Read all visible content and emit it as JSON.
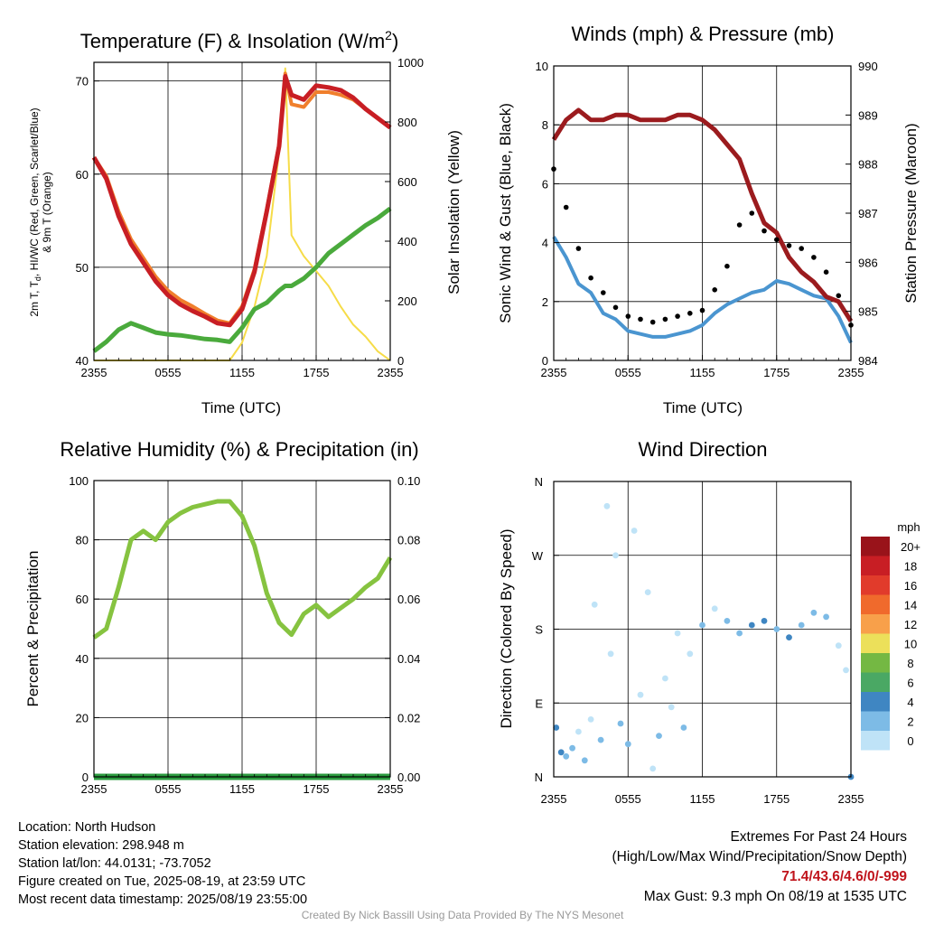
{
  "panels": {
    "temperature": {
      "title": "Temperature (F) & Insolation (W/m2)",
      "title_main": "Temperature (F) & Insolation (W/m",
      "title_sup": "2",
      "title_end": ")",
      "ylabel_left_line1": "2m T, T",
      "ylabel_left_sub": "d",
      "ylabel_left_line1_rest": ", HI/WC (Red, Green, Scarlet/Blue)",
      "ylabel_left_line2": "& 9m T (Orange)",
      "ylabel_right": "Solar Insolation (Yellow)",
      "xlabel": "Time (UTC)"
    },
    "winds": {
      "title": "Winds (mph) & Pressure (mb)",
      "ylabel_left": "Sonic Wind & Gust (Blue, Black)",
      "ylabel_right": "Station Pressure (Maroon)",
      "xlabel": "Time (UTC)"
    },
    "humidity": {
      "title": "Relative Humidity (%) & Precipitation (in)",
      "ylabel_left": "Percent & Precipitation"
    },
    "direction": {
      "title": "Wind Direction",
      "ylabel_left": "Direction (Colored By Speed)",
      "colorbar_title": "mph",
      "colorbar": [
        {
          "label": "20+",
          "color": "#99131a"
        },
        {
          "label": "18",
          "color": "#c81e24"
        },
        {
          "label": "16",
          "color": "#e13b2b"
        },
        {
          "label": "14",
          "color": "#f06a2c"
        },
        {
          "label": "12",
          "color": "#f8a04a"
        },
        {
          "label": "10",
          "color": "#ece05a"
        },
        {
          "label": "8",
          "color": "#74b843"
        },
        {
          "label": "6",
          "color": "#4aa864"
        },
        {
          "label": "4",
          "color": "#3f86c2"
        },
        {
          "label": "2",
          "color": "#7dbbe6"
        },
        {
          "label": "0",
          "color": "#bfe3f7"
        }
      ]
    }
  },
  "info": {
    "location": "Location: North Hudson",
    "elevation": "Station elevation: 298.948 m",
    "latlon": "Station lat/lon: 44.0131; -73.7052",
    "created": "Figure created on Tue, 2025-08-19, at 23:59 UTC",
    "recent": "Most recent data timestamp: 2025/08/19 23:55:00"
  },
  "extremes": {
    "title": "Extremes For Past 24 Hours",
    "subtitle": "(High/Low/Max Wind/Precipitation/Snow Depth)",
    "values": "71.4/43.6/4.6/0/-999",
    "gust": "Max Gust: 9.3 mph On 08/19 at 1535 UTC"
  },
  "credit": "Created By Nick Bassill Using Data Provided By The NYS Mesonet",
  "colors": {
    "temp": "#c81e24",
    "temp9m": "#f07f2c",
    "dewpoint": "#4aaa3c",
    "insolation": "#f6dc48",
    "wind": "#4a95d0",
    "gust": "#000000",
    "pressure": "#9b1b1e",
    "rh": "#86c340",
    "precip": "#2a9a3e"
  },
  "chart_data": [
    {
      "type": "line",
      "title": "Temperature (F) & Insolation (W/m2)",
      "xlabel": "Time (UTC)",
      "xticks": [
        "2355",
        "0555",
        "1155",
        "1755",
        "2355"
      ],
      "x_hours_from_start": [
        0,
        1,
        2,
        3,
        4,
        5,
        6,
        7,
        8,
        9,
        10,
        11,
        12,
        13,
        14,
        15,
        15.5,
        16,
        17,
        18,
        19,
        20,
        21,
        22,
        23,
        24
      ],
      "ylim_left": [
        40,
        72
      ],
      "yticks_left": [
        40,
        50,
        60,
        70
      ],
      "ylim_right": [
        0,
        1000
      ],
      "yticks_right": [
        0,
        200,
        400,
        600,
        800,
        1000
      ],
      "series": [
        {
          "axis": "left",
          "values": [
            61.8,
            59.5,
            55.5,
            52.5,
            50.5,
            48.5,
            47.0,
            46.0,
            45.3,
            44.7,
            44.0,
            43.8,
            45.5,
            49.5,
            56.0,
            63.0,
            70.5,
            68.5,
            68.0,
            69.5,
            69.3,
            69.0,
            68.2,
            67.0,
            66.0,
            65.0
          ]
        },
        {
          "axis": "left",
          "values": [
            61.8,
            59.8,
            56.0,
            53.0,
            51.0,
            49.0,
            47.5,
            46.5,
            45.8,
            45.0,
            44.3,
            44.0,
            45.8,
            49.8,
            56.2,
            63.2,
            70.8,
            67.5,
            67.2,
            68.8,
            68.8,
            68.5,
            68.0,
            67.0,
            66.0,
            65.0
          ]
        },
        {
          "axis": "left",
          "values": [
            41.0,
            42.0,
            43.3,
            44.0,
            43.5,
            43.0,
            42.8,
            42.7,
            42.5,
            42.3,
            42.2,
            42.0,
            43.5,
            45.5,
            46.2,
            47.5,
            48.0,
            48.0,
            48.8,
            50.0,
            51.5,
            52.5,
            53.5,
            54.5,
            55.3,
            56.3
          ]
        },
        {
          "axis": "right",
          "values": [
            0,
            0,
            0,
            0,
            0,
            0,
            0,
            0,
            0,
            0,
            0,
            0,
            60,
            180,
            350,
            700,
            980,
            420,
            350,
            300,
            250,
            180,
            120,
            80,
            30,
            0
          ]
        }
      ]
    },
    {
      "type": "line",
      "title": "Winds (mph) & Pressure (mb)",
      "xlabel": "Time (UTC)",
      "xticks": [
        "2355",
        "0555",
        "1155",
        "1755",
        "2355"
      ],
      "x_hours_from_start": [
        0,
        1,
        2,
        3,
        4,
        5,
        6,
        7,
        8,
        9,
        10,
        11,
        12,
        13,
        14,
        15,
        16,
        17,
        18,
        19,
        20,
        21,
        22,
        23,
        24
      ],
      "ylim_left": [
        0,
        10
      ],
      "yticks_left": [
        0,
        2,
        4,
        6,
        8,
        10
      ],
      "ylim_right": [
        984,
        990
      ],
      "yticks_right": [
        984,
        985,
        986,
        987,
        988,
        989,
        990
      ],
      "series": [
        {
          "axis": "left",
          "values": [
            4.2,
            3.5,
            2.6,
            2.3,
            1.6,
            1.4,
            1.0,
            0.9,
            0.8,
            0.8,
            0.9,
            1.0,
            1.2,
            1.6,
            1.9,
            2.1,
            2.3,
            2.4,
            2.7,
            2.6,
            2.4,
            2.2,
            2.1,
            1.5,
            0.6
          ]
        },
        {
          "axis": "left",
          "values": [
            6.5,
            5.2,
            3.8,
            2.8,
            2.3,
            1.8,
            1.5,
            1.4,
            1.3,
            1.4,
            1.5,
            1.6,
            1.7,
            2.4,
            3.2,
            4.6,
            5.0,
            4.4,
            4.1,
            3.9,
            3.8,
            3.5,
            3.0,
            2.2,
            1.2
          ]
        },
        {
          "axis": "right",
          "values": [
            988.5,
            988.9,
            989.1,
            988.9,
            988.9,
            989.0,
            989.0,
            988.9,
            988.9,
            988.9,
            989.0,
            989.0,
            988.9,
            988.7,
            988.4,
            988.1,
            987.4,
            986.8,
            986.6,
            986.1,
            985.8,
            985.6,
            985.3,
            985.2,
            984.8
          ]
        }
      ]
    },
    {
      "type": "line",
      "title": "Relative Humidity (%) & Precipitation (in)",
      "xticks": [
        "2355",
        "0555",
        "1155",
        "1755",
        "2355"
      ],
      "x_hours_from_start": [
        0,
        1,
        2,
        3,
        4,
        5,
        6,
        7,
        8,
        9,
        10,
        11,
        12,
        13,
        14,
        15,
        16,
        17,
        18,
        19,
        20,
        21,
        22,
        23,
        24
      ],
      "ylim_left": [
        0,
        100
      ],
      "yticks_left": [
        0,
        20,
        40,
        60,
        80,
        100
      ],
      "ylim_right": [
        0.0,
        0.1
      ],
      "yticks_right": [
        "0.00",
        "0.02",
        "0.04",
        "0.06",
        "0.08",
        "0.10"
      ],
      "series": [
        {
          "axis": "left",
          "values": [
            47,
            50,
            64,
            80,
            83,
            80,
            86,
            89,
            91,
            92,
            93,
            93,
            88,
            78,
            62,
            52,
            48,
            55,
            58,
            54,
            57,
            60,
            64,
            67,
            74
          ]
        },
        {
          "axis": "right",
          "values": [
            0,
            0,
            0,
            0,
            0,
            0,
            0,
            0,
            0,
            0,
            0,
            0,
            0,
            0,
            0,
            0,
            0,
            0,
            0,
            0,
            0,
            0,
            0,
            0,
            0
          ]
        }
      ]
    },
    {
      "type": "scatter",
      "title": "Wind Direction",
      "ylabel": "Direction (Colored By Speed)",
      "xticks": [
        "2355",
        "0555",
        "1155",
        "1755",
        "2355"
      ],
      "yticks": [
        "N",
        "E",
        "S",
        "W",
        "N"
      ],
      "ylim_degrees": [
        0,
        360
      ],
      "points": [
        {
          "x": 0.2,
          "deg": 60,
          "mph": 4
        },
        {
          "x": 0.6,
          "deg": 30,
          "mph": 4
        },
        {
          "x": 1.0,
          "deg": 25,
          "mph": 3
        },
        {
          "x": 1.5,
          "deg": 35,
          "mph": 2
        },
        {
          "x": 2.0,
          "deg": 55,
          "mph": 1
        },
        {
          "x": 2.5,
          "deg": 20,
          "mph": 2
        },
        {
          "x": 3.0,
          "deg": 70,
          "mph": 1
        },
        {
          "x": 3.3,
          "deg": 210,
          "mph": 0
        },
        {
          "x": 3.8,
          "deg": 45,
          "mph": 3
        },
        {
          "x": 4.3,
          "deg": 330,
          "mph": 0
        },
        {
          "x": 4.6,
          "deg": 150,
          "mph": 0
        },
        {
          "x": 5.0,
          "deg": 270,
          "mph": 1
        },
        {
          "x": 5.4,
          "deg": 65,
          "mph": 2
        },
        {
          "x": 6.0,
          "deg": 40,
          "mph": 3
        },
        {
          "x": 6.5,
          "deg": 300,
          "mph": 0
        },
        {
          "x": 7.0,
          "deg": 100,
          "mph": 1
        },
        {
          "x": 7.6,
          "deg": 225,
          "mph": 0
        },
        {
          "x": 8.0,
          "deg": 10,
          "mph": 1
        },
        {
          "x": 8.5,
          "deg": 50,
          "mph": 2
        },
        {
          "x": 9.0,
          "deg": 120,
          "mph": 0
        },
        {
          "x": 9.5,
          "deg": 85,
          "mph": 1
        },
        {
          "x": 10.0,
          "deg": 175,
          "mph": 1
        },
        {
          "x": 10.5,
          "deg": 60,
          "mph": 2
        },
        {
          "x": 11.0,
          "deg": 150,
          "mph": 1
        },
        {
          "x": 12.0,
          "deg": 185,
          "mph": 2
        },
        {
          "x": 13.0,
          "deg": 205,
          "mph": 1
        },
        {
          "x": 14.0,
          "deg": 190,
          "mph": 2
        },
        {
          "x": 15.0,
          "deg": 175,
          "mph": 3
        },
        {
          "x": 16.0,
          "deg": 185,
          "mph": 4
        },
        {
          "x": 17.0,
          "deg": 190,
          "mph": 4
        },
        {
          "x": 18.0,
          "deg": 180,
          "mph": 3
        },
        {
          "x": 19.0,
          "deg": 170,
          "mph": 4
        },
        {
          "x": 20.0,
          "deg": 185,
          "mph": 3
        },
        {
          "x": 21.0,
          "deg": 200,
          "mph": 3
        },
        {
          "x": 22.0,
          "deg": 195,
          "mph": 2
        },
        {
          "x": 23.0,
          "deg": 160,
          "mph": 1
        },
        {
          "x": 23.6,
          "deg": 130,
          "mph": 0
        },
        {
          "x": 24.0,
          "deg": 0,
          "mph": 4
        }
      ]
    }
  ]
}
